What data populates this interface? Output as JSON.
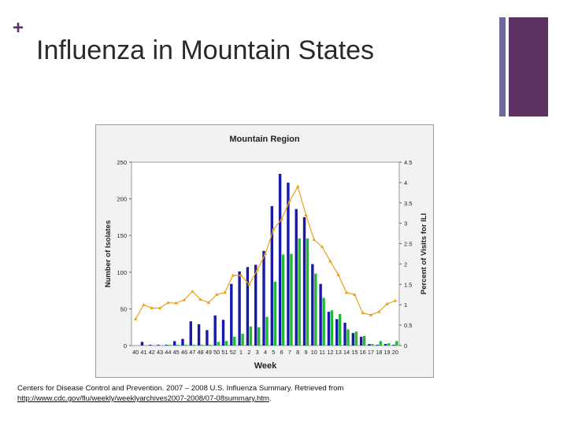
{
  "slide": {
    "plus_symbol": "+",
    "title": "Influenza in Mountain States",
    "citation_text": "Centers for Disease Control and Prevention. 2007 – 2008 U.S. Influenza Summary. Retrieved from",
    "citation_url": "http://www.cdc.gov/flu/weekly/weeklyarchives2007-2008/07-08summary.htm",
    "citation_suffix": ".",
    "colors": {
      "accent_purple": "#5e3364",
      "accent_slate": "#6e6aa0"
    }
  },
  "chart_data": {
    "type": "bar",
    "title": "Mountain Region",
    "xlabel": "Week",
    "ylabel": "Number of Isolates",
    "y2label": "Percent of Visits for ILI",
    "ylim": [
      0,
      250
    ],
    "y2lim": [
      0,
      4.5
    ],
    "yticks": [
      0,
      50,
      100,
      150,
      200,
      250
    ],
    "y2ticks": [
      "0",
      "0.5",
      "1",
      "1.5",
      "2",
      "2.5",
      "3",
      "3.5",
      "4",
      "4.5"
    ],
    "grid": false,
    "categories": [
      "40",
      "41",
      "42",
      "43",
      "44",
      "45",
      "46",
      "47",
      "48",
      "49",
      "50",
      "51",
      "52",
      "1",
      "2",
      "3",
      "4",
      "5",
      "6",
      "7",
      "8",
      "9",
      "10",
      "11",
      "12",
      "13",
      "14",
      "15",
      "16",
      "17",
      "18",
      "19",
      "20"
    ],
    "series": [
      {
        "kind": "bar",
        "axis": "left",
        "color": "#1a1aa8",
        "values": [
          0,
          5,
          1,
          1,
          1,
          6,
          9,
          33,
          29,
          21,
          41,
          35,
          84,
          101,
          107,
          110,
          129,
          190,
          234,
          222,
          186,
          175,
          111,
          84,
          46,
          36,
          31,
          17,
          12,
          2,
          1,
          2,
          1
        ]
      },
      {
        "kind": "bar",
        "axis": "left",
        "color": "#22bb33",
        "values": [
          0,
          0,
          0,
          0,
          1,
          1,
          1,
          1,
          1,
          1,
          5,
          6,
          12,
          16,
          26,
          25,
          39,
          87,
          124,
          125,
          146,
          146,
          98,
          65,
          48,
          43,
          22,
          19,
          13,
          2,
          6,
          3,
          6
        ]
      },
      {
        "kind": "line",
        "axis": "right",
        "color": "#e8a317",
        "values": [
          0.65,
          1.0,
          0.92,
          0.92,
          1.05,
          1.04,
          1.12,
          1.33,
          1.13,
          1.05,
          1.25,
          1.3,
          1.72,
          1.72,
          1.5,
          1.85,
          2.25,
          2.85,
          3.1,
          3.55,
          3.9,
          3.2,
          2.6,
          2.42,
          2.07,
          1.73,
          1.3,
          1.25,
          0.8,
          0.75,
          0.83,
          1.02,
          1.1
        ]
      }
    ]
  }
}
